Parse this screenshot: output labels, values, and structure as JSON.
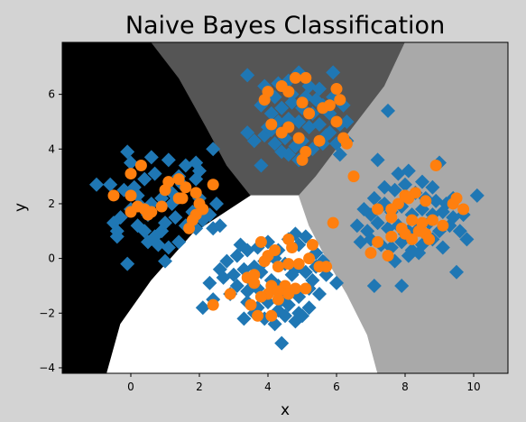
{
  "chart_data": {
    "type": "scatter",
    "title": "Naive Bayes Classification",
    "xlabel": "x",
    "ylabel": "y",
    "xlim": [
      -2,
      11
    ],
    "ylim": [
      -4.2,
      7.9
    ],
    "x_ticks": [
      "0",
      "2",
      "4",
      "6",
      "8",
      "10"
    ],
    "y_ticks": [
      "−4",
      "−2",
      "0",
      "2",
      "4",
      "6"
    ],
    "x_tick_values": [
      0,
      2,
      4,
      6,
      8,
      10
    ],
    "y_tick_values": [
      -4,
      -2,
      0,
      2,
      4,
      6
    ],
    "grid": false,
    "legend": "none",
    "decision_regions": [
      {
        "region": "left",
        "color": "#000000"
      },
      {
        "region": "top",
        "color": "#555555"
      },
      {
        "region": "bottom",
        "color": "#ffffff"
      },
      {
        "region": "right",
        "color": "#a9a9a9"
      }
    ],
    "series": [
      {
        "marker": "diamond",
        "color": "#1f77b4",
        "points": [
          [
            -1.0,
            2.7
          ],
          [
            -0.6,
            2.7
          ],
          [
            -0.2,
            2.5
          ],
          [
            0.1,
            2.6
          ],
          [
            0.4,
            2.9
          ],
          [
            0.7,
            3.1
          ],
          [
            0.0,
            3.5
          ],
          [
            -0.1,
            3.9
          ],
          [
            0.6,
            3.7
          ],
          [
            1.1,
            3.6
          ],
          [
            1.6,
            3.4
          ],
          [
            1.9,
            3.5
          ],
          [
            2.4,
            4.0
          ],
          [
            1.9,
            2.9
          ],
          [
            1.5,
            2.7
          ],
          [
            1.2,
            2.4
          ],
          [
            0.9,
            2.2
          ],
          [
            0.6,
            2.0
          ],
          [
            0.3,
            1.9
          ],
          [
            0.0,
            1.8
          ],
          [
            -0.3,
            1.5
          ],
          [
            -0.5,
            1.3
          ],
          [
            -0.4,
            1.0
          ],
          [
            -0.4,
            0.8
          ],
          [
            0.2,
            1.2
          ],
          [
            0.4,
            1.0
          ],
          [
            0.5,
            0.6
          ],
          [
            0.7,
            0.8
          ],
          [
            0.9,
            1.0
          ],
          [
            1.0,
            1.3
          ],
          [
            1.3,
            1.5
          ],
          [
            1.6,
            1.2
          ],
          [
            1.9,
            1.1
          ],
          [
            2.1,
            1.4
          ],
          [
            2.3,
            1.6
          ],
          [
            2.4,
            1.1
          ],
          [
            2.6,
            1.2
          ],
          [
            1.4,
            0.6
          ],
          [
            1.1,
            0.4
          ],
          [
            0.8,
            0.5
          ],
          [
            1.0,
            -0.1
          ],
          [
            -0.1,
            -0.2
          ],
          [
            0.5,
            1.6
          ],
          [
            1.2,
            2.0
          ],
          [
            2.0,
            2.2
          ],
          [
            2.5,
            2.0
          ],
          [
            1.8,
            1.7
          ],
          [
            0.2,
            2.3
          ],
          [
            1.4,
            3.0
          ],
          [
            2.0,
            3.2
          ],
          [
            3.4,
            6.7
          ],
          [
            3.9,
            6.3
          ],
          [
            4.2,
            5.9
          ],
          [
            4.6,
            6.5
          ],
          [
            4.9,
            6.8
          ],
          [
            5.2,
            6.3
          ],
          [
            5.5,
            6.2
          ],
          [
            5.9,
            6.8
          ],
          [
            3.8,
            5.6
          ],
          [
            4.1,
            5.3
          ],
          [
            4.4,
            5.5
          ],
          [
            4.7,
            5.7
          ],
          [
            5.0,
            5.5
          ],
          [
            5.3,
            5.3
          ],
          [
            5.6,
            5.6
          ],
          [
            5.8,
            5.3
          ],
          [
            6.2,
            5.6
          ],
          [
            6.3,
            5.0
          ],
          [
            4.3,
            5.0
          ],
          [
            4.6,
            5.1
          ],
          [
            4.9,
            5.0
          ],
          [
            5.2,
            4.8
          ],
          [
            5.5,
            4.9
          ],
          [
            5.8,
            4.6
          ],
          [
            6.1,
            4.9
          ],
          [
            3.4,
            4.6
          ],
          [
            3.6,
            4.3
          ],
          [
            3.9,
            4.5
          ],
          [
            4.2,
            4.2
          ],
          [
            4.5,
            4.4
          ],
          [
            4.8,
            4.1
          ],
          [
            5.0,
            4.3
          ],
          [
            5.3,
            4.0
          ],
          [
            5.6,
            4.2
          ],
          [
            6.0,
            4.2
          ],
          [
            6.3,
            4.3
          ],
          [
            4.6,
            3.8
          ],
          [
            4.9,
            3.6
          ],
          [
            3.8,
            3.4
          ],
          [
            6.1,
            3.8
          ],
          [
            4.0,
            4.8
          ],
          [
            5.7,
            4.5
          ],
          [
            7.5,
            5.4
          ],
          [
            4.7,
            6.0
          ],
          [
            5.1,
            5.9
          ],
          [
            5.4,
            5.8
          ],
          [
            4.1,
            4.7
          ],
          [
            4.4,
            3.9
          ],
          [
            5.9,
            5.9
          ],
          [
            4.3,
            6.4
          ],
          [
            7.2,
            3.6
          ],
          [
            7.8,
            3.1
          ],
          [
            8.1,
            3.2
          ],
          [
            8.5,
            2.8
          ],
          [
            9.0,
            3.5
          ],
          [
            7.1,
            2.2
          ],
          [
            7.4,
            2.6
          ],
          [
            7.7,
            2.5
          ],
          [
            8.0,
            2.7
          ],
          [
            8.3,
            2.4
          ],
          [
            8.6,
            2.2
          ],
          [
            8.9,
            2.1
          ],
          [
            9.2,
            2.0
          ],
          [
            9.4,
            2.2
          ],
          [
            10.1,
            2.3
          ],
          [
            6.8,
            1.8
          ],
          [
            7.0,
            1.6
          ],
          [
            7.3,
            1.9
          ],
          [
            7.6,
            1.7
          ],
          [
            7.9,
            1.9
          ],
          [
            8.2,
            1.6
          ],
          [
            8.5,
            1.8
          ],
          [
            8.8,
            1.6
          ],
          [
            9.1,
            1.7
          ],
          [
            9.4,
            1.5
          ],
          [
            9.7,
            1.6
          ],
          [
            6.6,
            1.2
          ],
          [
            6.9,
            1.0
          ],
          [
            7.2,
            1.3
          ],
          [
            7.5,
            1.1
          ],
          [
            7.8,
            1.2
          ],
          [
            8.1,
            1.0
          ],
          [
            8.4,
            1.1
          ],
          [
            8.7,
            1.3
          ],
          [
            9.0,
            1.0
          ],
          [
            9.3,
            1.2
          ],
          [
            9.6,
            1.0
          ],
          [
            6.7,
            0.6
          ],
          [
            7.0,
            0.7
          ],
          [
            7.3,
            0.5
          ],
          [
            7.6,
            0.4
          ],
          [
            7.9,
            0.6
          ],
          [
            8.2,
            0.3
          ],
          [
            8.5,
            0.5
          ],
          [
            8.8,
            0.7
          ],
          [
            9.1,
            0.4
          ],
          [
            9.8,
            0.7
          ],
          [
            7.7,
            -0.1
          ],
          [
            8.1,
            0.1
          ],
          [
            8.4,
            0.2
          ],
          [
            7.1,
            -1.0
          ],
          [
            7.9,
            -1.0
          ],
          [
            9.5,
            -0.5
          ],
          [
            8.0,
            0.9
          ],
          [
            7.4,
            2.0
          ],
          [
            8.8,
            2.6
          ],
          [
            2.3,
            -0.9
          ],
          [
            2.6,
            -0.4
          ],
          [
            2.8,
            -0.1
          ],
          [
            3.1,
            0.1
          ],
          [
            3.4,
            0.3
          ],
          [
            3.7,
            0.4
          ],
          [
            4.0,
            0.6
          ],
          [
            4.3,
            0.3
          ],
          [
            4.6,
            0.7
          ],
          [
            4.9,
            0.5
          ],
          [
            5.1,
            0.8
          ],
          [
            5.4,
            0.2
          ],
          [
            2.7,
            -0.7
          ],
          [
            3.0,
            -0.6
          ],
          [
            3.3,
            -0.4
          ],
          [
            3.6,
            -0.3
          ],
          [
            3.9,
            -0.1
          ],
          [
            4.2,
            0.0
          ],
          [
            4.5,
            -0.2
          ],
          [
            4.8,
            -0.4
          ],
          [
            5.1,
            -0.5
          ],
          [
            5.4,
            -0.3
          ],
          [
            5.7,
            -0.6
          ],
          [
            6.0,
            -0.9
          ],
          [
            3.1,
            -1.0
          ],
          [
            3.4,
            -1.2
          ],
          [
            3.7,
            -1.1
          ],
          [
            4.0,
            -1.3
          ],
          [
            4.3,
            -1.0
          ],
          [
            4.6,
            -1.2
          ],
          [
            4.9,
            -1.4
          ],
          [
            5.2,
            -1.1
          ],
          [
            5.5,
            -1.3
          ],
          [
            3.4,
            -1.6
          ],
          [
            3.7,
            -1.8
          ],
          [
            4.0,
            -1.6
          ],
          [
            4.3,
            -1.9
          ],
          [
            4.6,
            -1.7
          ],
          [
            4.9,
            -2.0
          ],
          [
            5.2,
            -1.8
          ],
          [
            3.3,
            -2.2
          ],
          [
            3.6,
            -2.0
          ],
          [
            3.9,
            -2.2
          ],
          [
            4.2,
            -2.4
          ],
          [
            4.5,
            -2.1
          ],
          [
            4.8,
            -2.3
          ],
          [
            5.0,
            -2.1
          ],
          [
            2.1,
            -1.8
          ],
          [
            2.4,
            -1.5
          ],
          [
            4.4,
            -3.1
          ],
          [
            3.8,
            -0.5
          ],
          [
            4.1,
            -0.8
          ],
          [
            4.7,
            -0.6
          ],
          [
            5.3,
            -0.8
          ],
          [
            2.9,
            -1.3
          ],
          [
            3.2,
            0.5
          ],
          [
            4.8,
            0.9
          ],
          [
            3.5,
            -0.8
          ],
          [
            4.4,
            -1.5
          ],
          [
            5.6,
            -0.1
          ]
        ]
      },
      {
        "marker": "circle",
        "color": "#ff7f0e",
        "points": [
          [
            -0.5,
            2.3
          ],
          [
            0.0,
            3.1
          ],
          [
            0.3,
            3.4
          ],
          [
            1.1,
            2.8
          ],
          [
            1.4,
            2.9
          ],
          [
            1.6,
            2.6
          ],
          [
            1.9,
            2.4
          ],
          [
            2.4,
            2.7
          ],
          [
            1.5,
            2.2
          ],
          [
            2.0,
            2.0
          ],
          [
            0.0,
            2.3
          ],
          [
            0.2,
            1.9
          ],
          [
            0.6,
            1.7
          ],
          [
            0.4,
            1.8
          ],
          [
            0.0,
            1.7
          ],
          [
            0.9,
            1.9
          ],
          [
            1.4,
            2.2
          ],
          [
            1.9,
            1.6
          ],
          [
            1.8,
            1.4
          ],
          [
            1.7,
            1.1
          ],
          [
            2.1,
            1.8
          ],
          [
            1.0,
            2.5
          ],
          [
            0.5,
            1.6
          ],
          [
            4.0,
            6.1
          ],
          [
            3.9,
            5.8
          ],
          [
            4.4,
            6.3
          ],
          [
            4.6,
            6.1
          ],
          [
            4.8,
            6.6
          ],
          [
            5.1,
            6.6
          ],
          [
            5.0,
            5.7
          ],
          [
            5.2,
            5.3
          ],
          [
            5.6,
            5.5
          ],
          [
            5.8,
            5.6
          ],
          [
            6.0,
            6.2
          ],
          [
            4.6,
            4.8
          ],
          [
            4.4,
            4.6
          ],
          [
            4.9,
            4.4
          ],
          [
            5.1,
            3.9
          ],
          [
            5.5,
            4.3
          ],
          [
            6.2,
            4.4
          ],
          [
            6.3,
            4.2
          ],
          [
            6.0,
            5.0
          ],
          [
            4.1,
            4.9
          ],
          [
            5.0,
            3.6
          ],
          [
            6.1,
            5.8
          ],
          [
            6.5,
            3.0
          ],
          [
            8.3,
            2.4
          ],
          [
            8.1,
            2.2
          ],
          [
            8.6,
            2.1
          ],
          [
            7.8,
            2.0
          ],
          [
            7.6,
            1.8
          ],
          [
            7.2,
            1.8
          ],
          [
            7.6,
            1.5
          ],
          [
            8.2,
            1.4
          ],
          [
            8.5,
            1.3
          ],
          [
            8.8,
            1.4
          ],
          [
            9.4,
            2.0
          ],
          [
            9.5,
            2.2
          ],
          [
            9.7,
            1.8
          ],
          [
            8.0,
            0.9
          ],
          [
            8.4,
            1.0
          ],
          [
            8.6,
            0.9
          ],
          [
            8.2,
            0.7
          ],
          [
            7.6,
            0.8
          ],
          [
            7.2,
            0.6
          ],
          [
            8.7,
            0.7
          ],
          [
            7.0,
            0.2
          ],
          [
            7.5,
            0.1
          ],
          [
            8.9,
            3.4
          ],
          [
            5.9,
            1.3
          ],
          [
            9.1,
            1.2
          ],
          [
            7.9,
            1.1
          ],
          [
            8.0,
            2.3
          ],
          [
            3.8,
            0.6
          ],
          [
            4.6,
            0.7
          ],
          [
            4.7,
            0.4
          ],
          [
            4.0,
            0.1
          ],
          [
            3.9,
            -0.1
          ],
          [
            4.3,
            -0.3
          ],
          [
            4.6,
            -0.2
          ],
          [
            4.9,
            -0.2
          ],
          [
            5.2,
            0.0
          ],
          [
            5.5,
            -0.3
          ],
          [
            5.7,
            -0.3
          ],
          [
            3.4,
            -0.7
          ],
          [
            3.6,
            -0.9
          ],
          [
            4.1,
            -1.0
          ],
          [
            4.5,
            -1.0
          ],
          [
            4.0,
            -1.3
          ],
          [
            4.3,
            -1.2
          ],
          [
            4.6,
            -1.3
          ],
          [
            3.8,
            -1.4
          ],
          [
            3.5,
            -1.7
          ],
          [
            4.3,
            -1.5
          ],
          [
            3.7,
            -2.1
          ],
          [
            4.1,
            -2.1
          ],
          [
            4.8,
            -1.1
          ],
          [
            5.1,
            -1.1
          ],
          [
            2.9,
            -1.3
          ],
          [
            2.4,
            -1.7
          ],
          [
            3.6,
            -0.6
          ],
          [
            4.2,
            0.3
          ],
          [
            5.3,
            0.5
          ]
        ]
      }
    ]
  }
}
